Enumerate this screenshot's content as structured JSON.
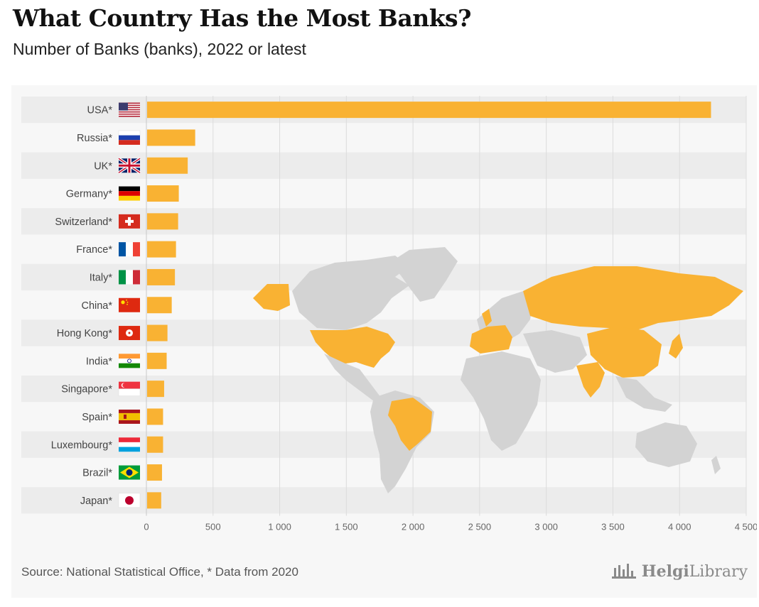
{
  "title": "What Country Has the Most Banks?",
  "subtitle": "Number of Banks (banks), 2022 or latest",
  "source": "Source: National Statistical Office, * Data from 2020",
  "brand": {
    "part1": "Helgi",
    "part2": "Library"
  },
  "colors": {
    "bar": "#f9b233",
    "row_band": "#ececec",
    "grid": "#dcdcdc",
    "map_gray": "#d3d3d3",
    "map_highlight": "#f9b233"
  },
  "chart_data": {
    "type": "bar",
    "orientation": "horizontal",
    "categories": [
      "USA*",
      "Russia*",
      "UK*",
      "Germany*",
      "Switzerland*",
      "France*",
      "Italy*",
      "China*",
      "Hong Kong*",
      "India*",
      "Singapore*",
      "Spain*",
      "Luxembourg*",
      "Brazil*",
      "Japan*"
    ],
    "values": [
      4236,
      366,
      310,
      243,
      238,
      222,
      214,
      190,
      158,
      152,
      133,
      125,
      125,
      117,
      111
    ],
    "xlim": [
      0,
      4500
    ],
    "xticks": [
      0,
      500,
      1000,
      1500,
      2000,
      2500,
      3000,
      3500,
      4000,
      4500
    ],
    "xtick_labels": [
      "0",
      "500",
      "1 000",
      "1 500",
      "2 000",
      "2 500",
      "3 000",
      "3 500",
      "4 000",
      "4 500"
    ],
    "grid": true,
    "flags": [
      "us-flag",
      "russia-flag",
      "uk-flag",
      "germany-flag",
      "switzerland-flag",
      "france-flag",
      "italy-flag",
      "china-flag",
      "hongkong-flag",
      "india-flag",
      "singapore-flag",
      "spain-flag",
      "luxembourg-flag",
      "brazil-flag",
      "japan-flag"
    ],
    "background_map": "world-map"
  }
}
